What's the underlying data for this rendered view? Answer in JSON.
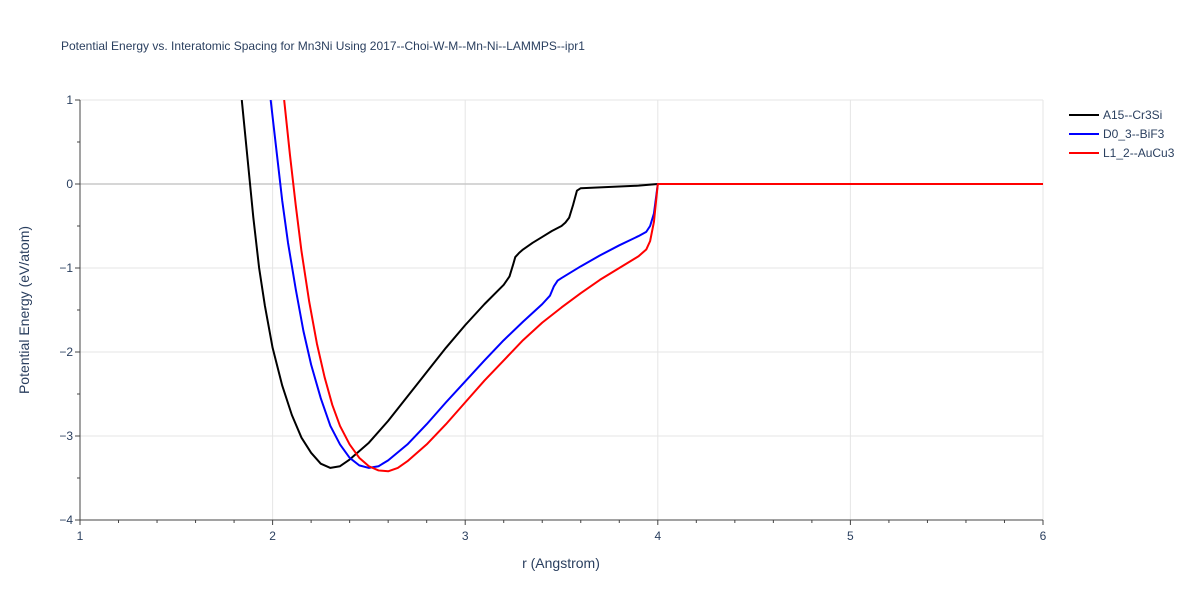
{
  "chart_data": {
    "type": "line",
    "title": "Potential Energy vs. Interatomic Spacing for Mn3Ni Using 2017--Choi-W-M--Mn-Ni--LAMMPS--ipr1",
    "xlabel": "r (Angstrom)",
    "ylabel": "Potential Energy (eV/atom)",
    "xlim": [
      1,
      6
    ],
    "ylim": [
      -4,
      1
    ],
    "xticks": [
      1,
      2,
      3,
      4,
      5,
      6
    ],
    "yticks": [
      -4,
      -3,
      -2,
      -1,
      0,
      1
    ],
    "xtick_labels": [
      "1",
      "2",
      "3",
      "4",
      "5",
      "6"
    ],
    "ytick_labels": [
      "−4",
      "−3",
      "−2",
      "−1",
      "0",
      "1"
    ],
    "grid": true,
    "legend_position": "top-right",
    "series": [
      {
        "name": "A15--Cr3Si",
        "color": "#000000",
        "x": [
          1.84,
          1.87,
          1.9,
          1.93,
          1.96,
          2.0,
          2.05,
          2.1,
          2.15,
          2.2,
          2.25,
          2.3,
          2.35,
          2.4,
          2.5,
          2.6,
          2.7,
          2.8,
          2.9,
          3.0,
          3.1,
          3.2,
          3.23,
          3.25,
          3.26,
          3.28,
          3.3,
          3.35,
          3.4,
          3.45,
          3.5,
          3.52,
          3.54,
          3.56,
          3.58,
          3.6,
          3.7,
          3.8,
          3.9,
          4.0,
          4.5,
          5.0,
          5.5,
          6.0
        ],
        "y": [
          1.0,
          0.3,
          -0.4,
          -1.0,
          -1.45,
          -1.95,
          -2.4,
          -2.75,
          -3.02,
          -3.2,
          -3.33,
          -3.38,
          -3.36,
          -3.28,
          -3.08,
          -2.82,
          -2.53,
          -2.24,
          -1.95,
          -1.68,
          -1.43,
          -1.2,
          -1.1,
          -0.95,
          -0.87,
          -0.82,
          -0.78,
          -0.7,
          -0.63,
          -0.56,
          -0.5,
          -0.46,
          -0.4,
          -0.25,
          -0.08,
          -0.05,
          -0.04,
          -0.03,
          -0.02,
          0.0,
          0.0,
          0.0,
          0.0,
          0.0
        ]
      },
      {
        "name": "D0_3--BiF3",
        "color": "#0000ff",
        "x": [
          1.99,
          2.02,
          2.05,
          2.08,
          2.12,
          2.16,
          2.2,
          2.25,
          2.3,
          2.35,
          2.4,
          2.45,
          2.5,
          2.55,
          2.6,
          2.7,
          2.8,
          2.9,
          3.0,
          3.1,
          3.2,
          3.3,
          3.4,
          3.44,
          3.46,
          3.48,
          3.5,
          3.6,
          3.7,
          3.8,
          3.9,
          3.94,
          3.96,
          3.98,
          4.0,
          4.5,
          5.0,
          5.5,
          6.0
        ],
        "y": [
          1.0,
          0.4,
          -0.2,
          -0.7,
          -1.25,
          -1.75,
          -2.15,
          -2.55,
          -2.88,
          -3.1,
          -3.26,
          -3.35,
          -3.38,
          -3.36,
          -3.29,
          -3.1,
          -2.86,
          -2.6,
          -2.35,
          -2.1,
          -1.86,
          -1.64,
          -1.43,
          -1.33,
          -1.22,
          -1.15,
          -1.12,
          -0.98,
          -0.85,
          -0.73,
          -0.62,
          -0.57,
          -0.5,
          -0.35,
          0.0,
          0.0,
          0.0,
          0.0,
          0.0
        ]
      },
      {
        "name": "L1_2--AuCu3",
        "color": "#ff0000",
        "x": [
          2.06,
          2.09,
          2.12,
          2.15,
          2.19,
          2.23,
          2.27,
          2.31,
          2.35,
          2.4,
          2.45,
          2.5,
          2.55,
          2.6,
          2.65,
          2.7,
          2.8,
          2.9,
          3.0,
          3.1,
          3.2,
          3.3,
          3.4,
          3.5,
          3.6,
          3.7,
          3.8,
          3.9,
          3.94,
          3.96,
          3.98,
          4.0,
          4.5,
          5.0,
          5.5,
          6.0
        ],
        "y": [
          1.0,
          0.35,
          -0.25,
          -0.8,
          -1.4,
          -1.9,
          -2.3,
          -2.63,
          -2.88,
          -3.1,
          -3.26,
          -3.36,
          -3.41,
          -3.42,
          -3.38,
          -3.3,
          -3.1,
          -2.86,
          -2.6,
          -2.34,
          -2.1,
          -1.86,
          -1.65,
          -1.47,
          -1.3,
          -1.14,
          -1.0,
          -0.86,
          -0.78,
          -0.68,
          -0.45,
          0.0,
          0.0,
          0.0,
          0.0,
          0.0
        ]
      }
    ]
  }
}
